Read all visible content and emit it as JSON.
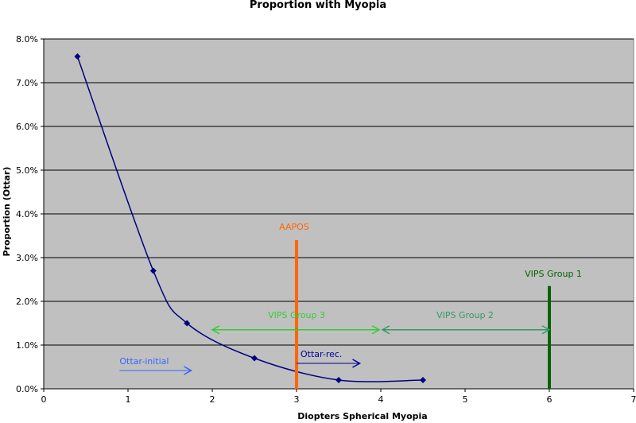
{
  "chart_data": {
    "type": "scatter",
    "title": "Proportion with Myopia",
    "xlabel": "Diopters Spherical Myopia",
    "ylabel": "Proportion (Ottar)",
    "xlim": [
      0,
      7
    ],
    "ylim": [
      0,
      0.08
    ],
    "x_ticks": [
      "0",
      "1",
      "2",
      "3",
      "4",
      "5",
      "6",
      "7"
    ],
    "y_ticks": [
      "0.0%",
      "1.0%",
      "2.0%",
      "3.0%",
      "4.0%",
      "5.0%",
      "6.0%",
      "7.0%",
      "8.0%"
    ],
    "grid": true,
    "plot_background": "#C0C0C0",
    "series": [
      {
        "smooth": true,
        "color": "#000080",
        "points": [
          {
            "x": 0.4,
            "y": 0.076
          },
          {
            "x": 1.3,
            "y": 0.027
          },
          {
            "x": 1.7,
            "y": 0.015
          },
          {
            "x": 2.5,
            "y": 0.007
          },
          {
            "x": 3.5,
            "y": 0.002
          },
          {
            "x": 4.5,
            "y": 0.002
          }
        ]
      }
    ],
    "annotations": {
      "aapos": {
        "label": "AAPOS",
        "x": 3.0,
        "y_top": 0.034,
        "color": "#FF6600"
      },
      "vips_group1": {
        "label": "VIPS Group 1",
        "x": 6.0,
        "y_top": 0.0235,
        "color": "#006400"
      },
      "vips_group3": {
        "label": "VIPS   Group 3",
        "x_start": 2.0,
        "x_end": 4.0,
        "y": 0.0135,
        "color": "#33CC33"
      },
      "vips_group2": {
        "label": "VIPS Group 2",
        "x_start": 4.0,
        "x_end": 6.0,
        "y": 0.0135,
        "color": "#339966"
      },
      "ottar_initial": {
        "label": "Ottar-initial",
        "x_start": 0.9,
        "x_end": 1.75,
        "y": 0.002,
        "color": "#3366FF"
      },
      "ottar_rec": {
        "label": "Ottar-rec.",
        "x_start": 3.0,
        "x_end": 3.75,
        "y": 0.006,
        "color": "#000099"
      }
    }
  }
}
